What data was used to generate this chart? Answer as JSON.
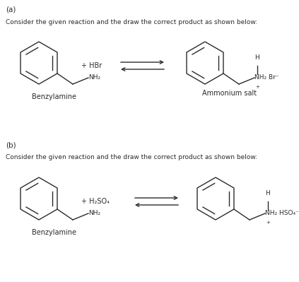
{
  "background_color": "#ffffff",
  "part_a_label": "(a)",
  "part_b_label": "(b)",
  "instruction": "Consider the given reaction and the draw the correct product as shown below:",
  "benzylamine_label": "Benzylamine",
  "ammonium_salt_label": "Ammonium salt",
  "reagent_a": "+ HBr",
  "reagent_b": "+ H₂SO₄",
  "text_color": "#2b2b2b",
  "line_color": "#2b2b2b",
  "line_width": 1.0,
  "font_size_part": 7.5,
  "font_size_instr": 6.5,
  "font_size_chem": 6.5,
  "font_size_label": 7.0
}
